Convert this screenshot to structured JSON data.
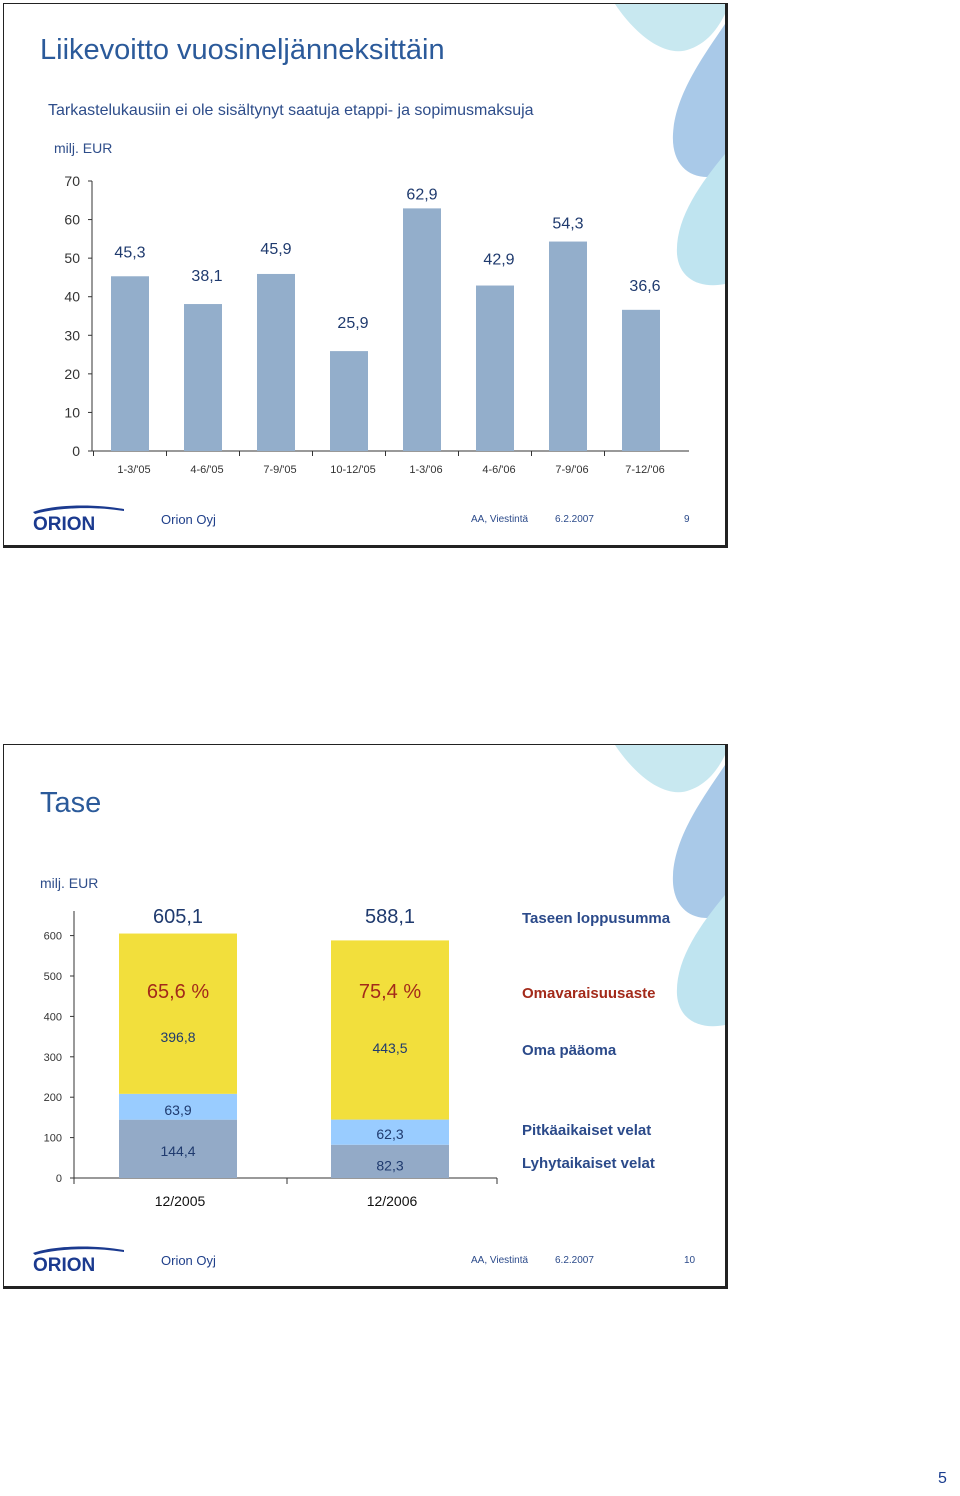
{
  "slides": [
    {
      "title": "Liikevoitto vuosineljänneksittäin",
      "subtitle": "Tarkastelukausiin ei ole sisältynyt saatuja etappi- ja sopimusmaksuja",
      "unit": "milj. EUR",
      "footer": {
        "company": "Orion Oyj",
        "author": "AA,  Viestintä",
        "date": "6.2.2007",
        "page": "9"
      }
    },
    {
      "title": "Tase",
      "unit": "milj. EUR",
      "footer": {
        "company": "Orion Oyj",
        "author": "AA,  Viestintä",
        "date": "6.2.2007",
        "page": "10"
      }
    }
  ],
  "logo_text": "ORION",
  "page_number": "5",
  "colors": {
    "title": "#2b5a9a",
    "bar": "#93aecb",
    "equity": "#f2df3c",
    "long_term": "#99ccff",
    "short_term": "#93aac7",
    "ratio": "#a32a1a"
  },
  "chart_data": [
    {
      "type": "bar",
      "categories": [
        "1-3/'05",
        "4-6/'05",
        "7-9/'05",
        "10-12/'05",
        "1-3/'06",
        "4-6/'06",
        "7-9/'06",
        "7-12/'06"
      ],
      "values": [
        45.3,
        38.1,
        45.9,
        25.9,
        62.9,
        42.9,
        54.3,
        36.6
      ],
      "value_labels": [
        "45,3",
        "38,1",
        "45,9",
        "25,9",
        "62,9",
        "42,9",
        "54,3",
        "36,6"
      ],
      "ylim": [
        0,
        70
      ],
      "yticks": [
        "0",
        "10",
        "20",
        "30",
        "40",
        "50",
        "60",
        "70"
      ],
      "grid": false
    },
    {
      "type": "bar",
      "stacked": true,
      "categories": [
        "12/2005",
        "12/2006"
      ],
      "series": [
        {
          "name": "Lyhytaikaiset velat",
          "values": [
            144.4,
            82.3
          ],
          "labels": [
            "144,4",
            "82,3"
          ]
        },
        {
          "name": "Pitkäaikaiset velat",
          "values": [
            63.9,
            62.3
          ],
          "labels": [
            "63,9",
            "62,3"
          ]
        },
        {
          "name": "Oma pääoma",
          "values": [
            396.8,
            443.5
          ],
          "labels": [
            "396,8",
            "443,5"
          ]
        }
      ],
      "totals": {
        "name": "Taseen loppusumma",
        "values": [
          605.1,
          588.1
        ],
        "labels": [
          "605,1",
          "588,1"
        ]
      },
      "ratio": {
        "name": "Omavaraisuusaste",
        "labels": [
          "65,6 %",
          "75,4 %"
        ]
      },
      "ylim": [
        0,
        650
      ],
      "yticks": [
        "0",
        "100",
        "200",
        "300",
        "400",
        "500",
        "600"
      ]
    }
  ]
}
